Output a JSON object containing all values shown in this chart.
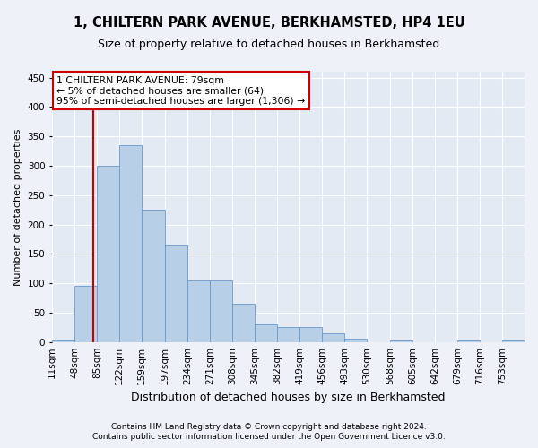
{
  "title": "1, CHILTERN PARK AVENUE, BERKHAMSTED, HP4 1EU",
  "subtitle": "Size of property relative to detached houses in Berkhamsted",
  "xlabel": "Distribution of detached houses by size in Berkhamsted",
  "ylabel": "Number of detached properties",
  "footer1": "Contains HM Land Registry data © Crown copyright and database right 2024.",
  "footer2": "Contains public sector information licensed under the Open Government Licence v3.0.",
  "bar_color": "#b8cfe8",
  "bar_edge_color": "#6699cc",
  "annotation_text1": "1 CHILTERN PARK AVENUE: 79sqm",
  "annotation_text2": "← 5% of detached houses are smaller (64)",
  "annotation_text3": "95% of semi-detached houses are larger (1,306) →",
  "annotation_box_color": "#ffffff",
  "annotation_border_color": "#cc0000",
  "vline_color": "#cc0000",
  "vline_x": 79,
  "categories": [
    "11sqm",
    "48sqm",
    "85sqm",
    "122sqm",
    "159sqm",
    "197sqm",
    "234sqm",
    "271sqm",
    "308sqm",
    "345sqm",
    "382sqm",
    "419sqm",
    "456sqm",
    "493sqm",
    "530sqm",
    "568sqm",
    "605sqm",
    "642sqm",
    "679sqm",
    "716sqm",
    "753sqm"
  ],
  "bin_edges": [
    11,
    48,
    85,
    122,
    159,
    197,
    234,
    271,
    308,
    345,
    382,
    419,
    456,
    493,
    530,
    568,
    605,
    642,
    679,
    716,
    753,
    790
  ],
  "values": [
    2,
    95,
    300,
    335,
    225,
    165,
    105,
    105,
    65,
    30,
    25,
    25,
    15,
    5,
    0,
    2,
    0,
    0,
    2,
    0,
    2
  ],
  "ylim": [
    0,
    460
  ],
  "yticks": [
    0,
    50,
    100,
    150,
    200,
    250,
    300,
    350,
    400,
    450
  ],
  "bg_color": "#eef2f8",
  "plot_bg_color": "#e4eaf4",
  "title_fontsize": 10.5,
  "subtitle_fontsize": 9,
  "ylabel_fontsize": 8,
  "xlabel_fontsize": 9,
  "footer_fontsize": 6.5,
  "tick_fontsize": 7.5
}
